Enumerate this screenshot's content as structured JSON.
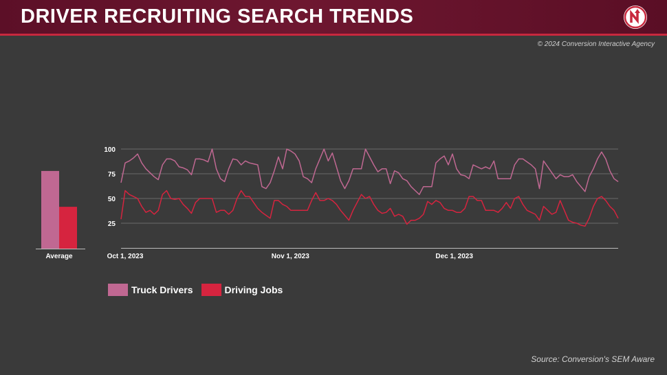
{
  "header": {
    "title": "DRIVER RECRUITING SEARCH TRENDS",
    "logo_icon": "arrow-n-logo-icon"
  },
  "copyright": "© 2024 Conversion Interactive Agency",
  "source": "Source: Conversion's SEM Aware",
  "colors": {
    "background": "#3a3a3a",
    "header": "#6e1730",
    "accent": "#c8283e",
    "truck_drivers": "#c06892",
    "driving_jobs": "#d6243f",
    "grid": "#6a6a6a",
    "axis_text": "#ffffff"
  },
  "chart_data": [
    {
      "type": "bar",
      "categories": [
        "Average"
      ],
      "series": [
        {
          "name": "Truck Drivers",
          "values": [
            78
          ]
        },
        {
          "name": "Driving Jobs",
          "values": [
            42
          ]
        }
      ],
      "ylim": [
        0,
        100
      ]
    },
    {
      "type": "line",
      "x_start": "2023-10-01",
      "x_end": "2023-12-31",
      "x_tick_labels": [
        "Oct 1, 2023",
        "Nov 1, 2023",
        "Dec 1, 2023"
      ],
      "y_ticks": [
        25,
        50,
        75,
        100
      ],
      "ylim": [
        0,
        100
      ],
      "grid": true,
      "legend": "bottom-left",
      "series": [
        {
          "name": "Truck Drivers",
          "values": [
            66,
            86,
            88,
            91,
            95,
            86,
            80,
            76,
            72,
            69,
            84,
            90,
            90,
            88,
            82,
            81,
            79,
            74,
            90,
            90,
            89,
            87,
            100,
            80,
            70,
            67,
            80,
            90,
            89,
            84,
            88,
            86,
            85,
            84,
            62,
            60,
            66,
            78,
            92,
            80,
            100,
            98,
            95,
            88,
            72,
            70,
            66,
            80,
            90,
            100,
            88,
            96,
            82,
            68,
            60,
            68,
            80,
            80,
            80,
            100,
            92,
            84,
            77,
            80,
            80,
            65,
            78,
            76,
            70,
            68,
            62,
            58,
            54,
            62,
            62,
            62,
            86,
            90,
            93,
            84,
            95,
            80,
            74,
            73,
            70,
            84,
            82,
            80,
            82,
            80,
            88,
            70,
            70,
            70,
            70,
            84,
            90,
            90,
            87,
            84,
            80,
            60,
            88,
            82,
            76,
            70,
            74,
            72,
            72,
            74,
            67,
            62,
            57,
            72,
            80,
            90,
            97,
            90,
            78,
            70,
            67
          ],
          "ticks_hint": "daily"
        },
        {
          "name": "Driving Jobs",
          "values": [
            29,
            58,
            54,
            52,
            50,
            42,
            36,
            38,
            34,
            38,
            54,
            58,
            50,
            49,
            50,
            44,
            40,
            35,
            46,
            50,
            50,
            50,
            50,
            36,
            38,
            38,
            34,
            38,
            50,
            58,
            52,
            52,
            46,
            40,
            36,
            33,
            30,
            48,
            48,
            44,
            42,
            38,
            38,
            38,
            38,
            38,
            48,
            56,
            48,
            48,
            50,
            48,
            44,
            38,
            33,
            28,
            38,
            46,
            54,
            50,
            52,
            44,
            38,
            35,
            36,
            40,
            32,
            34,
            32,
            24,
            28,
            28,
            30,
            34,
            47,
            44,
            48,
            46,
            40,
            38,
            38,
            36,
            36,
            40,
            52,
            52,
            48,
            48,
            38,
            38,
            38,
            36,
            40,
            46,
            40,
            50,
            52,
            44,
            38,
            36,
            34,
            28,
            42,
            38,
            34,
            36,
            48,
            38,
            28,
            26,
            25,
            23,
            22,
            30,
            42,
            50,
            52,
            48,
            42,
            38,
            30
          ]
        }
      ]
    }
  ]
}
